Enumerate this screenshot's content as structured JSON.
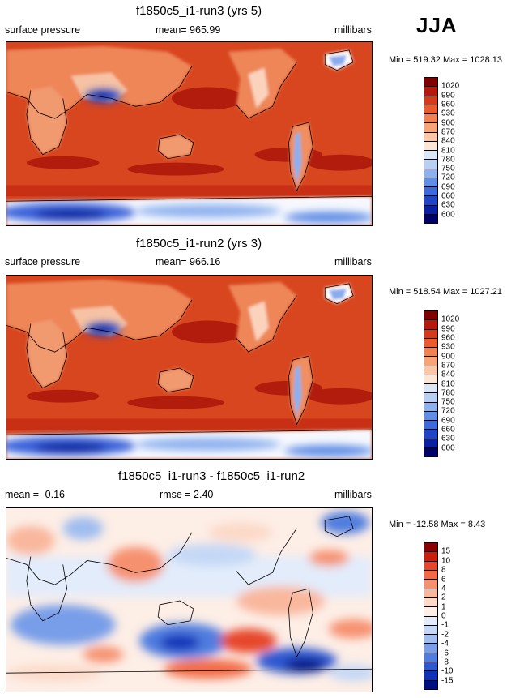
{
  "header": {
    "season": "JJA"
  },
  "panels": [
    {
      "title": "f1850c5_i1-run3 (yrs 5)",
      "left_label": "surface pressure",
      "center_label": "mean= 965.99",
      "right_label": "millibars",
      "minmax": "Min = 519.32 Max = 1028.13",
      "colorbar": {
        "labels": [
          "1020",
          "990",
          "960",
          "930",
          "900",
          "870",
          "840",
          "810",
          "780",
          "750",
          "720",
          "690",
          "660",
          "630",
          "600"
        ],
        "colors": [
          "#7f0000",
          "#b5190b",
          "#d63a18",
          "#ea5a2a",
          "#f47f4f",
          "#f8a479",
          "#fbc7a6",
          "#fde6d6",
          "#dbe7f7",
          "#b6cff3",
          "#8cb1ee",
          "#5f8ee6",
          "#3a6adc",
          "#1e45c7",
          "#0a20a3",
          "#00006b"
        ]
      }
    },
    {
      "title": "f1850c5_i1-run2 (yrs 3)",
      "left_label": "surface pressure",
      "center_label": "mean= 966.16",
      "right_label": "millibars",
      "minmax": "Min = 518.54 Max = 1027.21",
      "colorbar": {
        "labels": [
          "1020",
          "990",
          "960",
          "930",
          "900",
          "870",
          "840",
          "810",
          "780",
          "750",
          "720",
          "690",
          "660",
          "630",
          "600"
        ],
        "colors": [
          "#7f0000",
          "#b5190b",
          "#d63a18",
          "#ea5a2a",
          "#f47f4f",
          "#f8a479",
          "#fbc7a6",
          "#fde6d6",
          "#dbe7f7",
          "#b6cff3",
          "#8cb1ee",
          "#5f8ee6",
          "#3a6adc",
          "#1e45c7",
          "#0a20a3",
          "#00006b"
        ]
      }
    },
    {
      "title": "f1850c5_i1-run3 - f1850c5_i1-run2",
      "left_label": "mean =  -0.16",
      "center_label": "rmse =   2.40",
      "right_label": "millibars",
      "minmax": "Min = -12.58 Max =   8.43",
      "colorbar": {
        "labels": [
          "15",
          "10",
          "8",
          "6",
          "4",
          "2",
          "1",
          "0",
          "-1",
          "-2",
          "-4",
          "-6",
          "-8",
          "-10",
          "-15"
        ],
        "colors": [
          "#8b0000",
          "#c8200f",
          "#e6462a",
          "#f26a45",
          "#f69170",
          "#f9b79d",
          "#fcd9c8",
          "#fdeee6",
          "#e2ecfb",
          "#c4d8f6",
          "#9fbdf1",
          "#789ee9",
          "#4f7ddf",
          "#2d59d0",
          "#1030b8",
          "#000f80"
        ]
      }
    }
  ]
}
